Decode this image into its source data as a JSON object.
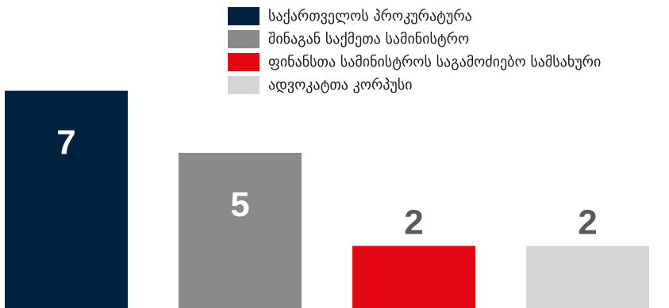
{
  "chart_data": {
    "type": "bar",
    "categories": [
      "საქართველოს პროკურატურა",
      "შინაგან საქმეთა სამინისტრო",
      "ფინანსთა სამინისტროს საგამოძიებო სამსახური",
      "ადვოკატთა კორპუსი"
    ],
    "values": [
      7,
      5,
      2,
      2
    ],
    "colors": [
      "#00223f",
      "#8a8a8a",
      "#e30613",
      "#d5d5d5"
    ],
    "value_label_colors": [
      "#ffffff",
      "#ffffff",
      "#58595b",
      "#58595b"
    ],
    "legend_position": "top-right",
    "grid": false,
    "ylim": [
      0,
      7.5
    ]
  }
}
